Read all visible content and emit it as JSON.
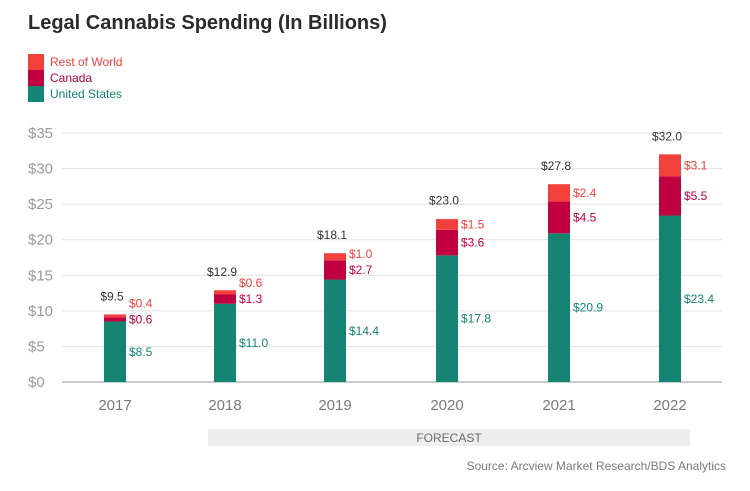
{
  "chart_data": {
    "type": "bar",
    "stacked": true,
    "title": "Legal Cannabis Spending (In Billions)",
    "categories": [
      "2017",
      "2018",
      "2019",
      "2020",
      "2021",
      "2022"
    ],
    "series": [
      {
        "name": "United States",
        "color": "#138472",
        "values": [
          8.5,
          11.0,
          14.4,
          17.8,
          20.9,
          23.4
        ],
        "labels": [
          "$8.5",
          "$11.0",
          "$14.4",
          "$17.8",
          "$20.9",
          "$23.4"
        ]
      },
      {
        "name": "Canada",
        "color": "#c00040",
        "values": [
          0.6,
          1.3,
          2.7,
          3.6,
          4.5,
          5.5
        ],
        "labels": [
          "$0.6",
          "$1.3",
          "$2.7",
          "$3.6",
          "$4.5",
          "$5.5"
        ]
      },
      {
        "name": "Rest of World",
        "color": "#f2403c",
        "values": [
          0.4,
          0.6,
          1.0,
          1.5,
          2.4,
          3.1
        ],
        "labels": [
          "$0.4",
          "$0.6",
          "$1.0",
          "$1.5",
          "$2.4",
          "$3.1"
        ]
      }
    ],
    "totals": [
      9.5,
      12.9,
      18.1,
      23.0,
      27.8,
      32.0
    ],
    "total_labels": [
      "$9.5",
      "$12.9",
      "$18.1",
      "$23.0",
      "$27.8",
      "$32.0"
    ],
    "ylim": [
      0,
      35
    ],
    "yticks": [
      0,
      5,
      10,
      15,
      20,
      25,
      30,
      35
    ],
    "ytick_labels": [
      "$0",
      "$5",
      "$10",
      "$15",
      "$20",
      "$25",
      "$30",
      "$35"
    ],
    "grid": true,
    "legend_position": "top-left",
    "forecast_label": "FORECAST",
    "forecast_range": [
      "2018",
      "2022"
    ],
    "source": "Source: Arcview Market Research/BDS Analytics"
  }
}
